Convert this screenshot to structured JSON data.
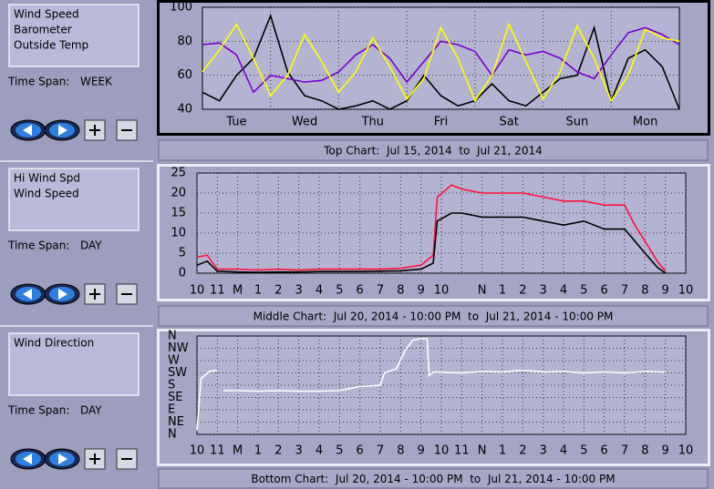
{
  "chart_data": [
    {
      "type": "line",
      "caption": "Top Chart:  Jul 15, 2014  to  Jul 21, 2014",
      "x": [
        0,
        6,
        12,
        18,
        24,
        30,
        36,
        42,
        48,
        54,
        60,
        66,
        72,
        78,
        84,
        90,
        96,
        102,
        108,
        114,
        120,
        126,
        132,
        138,
        144,
        150,
        156,
        162,
        168
      ],
      "xlim": [
        0,
        168
      ],
      "xticks": [
        {
          "value": 12,
          "label": "Tue"
        },
        {
          "value": 36,
          "label": "Wed"
        },
        {
          "value": 60,
          "label": "Thu"
        },
        {
          "value": 84,
          "label": "Fri"
        },
        {
          "value": 108,
          "label": "Sat"
        },
        {
          "value": 132,
          "label": "Sun"
        },
        {
          "value": 156,
          "label": "Mon"
        }
      ],
      "xgrid": [
        24,
        48,
        72,
        96,
        120,
        144
      ],
      "ylim": [
        40,
        100
      ],
      "yticks": [
        40,
        60,
        80,
        100
      ],
      "grid": true,
      "series": [
        {
          "name": "Wind Speed",
          "color": "#000000",
          "values": [
            50,
            45,
            60,
            70,
            95,
            62,
            48,
            45,
            40,
            42,
            45,
            40,
            45,
            60,
            48,
            42,
            45,
            55,
            45,
            42,
            50,
            58,
            60,
            88,
            45,
            70,
            75,
            65,
            40
          ]
        },
        {
          "name": "Barometer",
          "color": "#7a00cc",
          "values": [
            78,
            79,
            72,
            50,
            60,
            58,
            56,
            57,
            62,
            72,
            78,
            70,
            56,
            68,
            80,
            78,
            74,
            60,
            75,
            72,
            74,
            70,
            62,
            58,
            72,
            85,
            88,
            84,
            78
          ]
        },
        {
          "name": "Outside Temp",
          "color": "#ffff00",
          "values": [
            62,
            75,
            90,
            70,
            48,
            60,
            84,
            68,
            50,
            62,
            82,
            65,
            46,
            58,
            88,
            70,
            45,
            60,
            90,
            68,
            46,
            62,
            89,
            70,
            45,
            60,
            87,
            82,
            80
          ]
        }
      ]
    },
    {
      "type": "line",
      "caption": "Middle Chart:  Jul 20, 2014 - 10:00 PM  to  Jul 21, 2014 - 10:00 PM",
      "x": [
        0,
        0.5,
        1,
        2,
        3,
        4,
        5,
        6,
        7,
        8,
        9,
        10,
        11,
        11.6,
        11.8,
        12.5,
        13,
        14,
        15,
        16,
        17,
        18,
        19,
        20,
        21,
        21.5,
        22,
        22.6,
        23
      ],
      "xlim": [
        0,
        24
      ],
      "xticks": [
        {
          "value": 0,
          "label": "10"
        },
        {
          "value": 1,
          "label": "11"
        },
        {
          "value": 2,
          "label": "M"
        },
        {
          "value": 3,
          "label": "1"
        },
        {
          "value": 4,
          "label": "2"
        },
        {
          "value": 5,
          "label": "3"
        },
        {
          "value": 6,
          "label": "4"
        },
        {
          "value": 7,
          "label": "5"
        },
        {
          "value": 8,
          "label": "6"
        },
        {
          "value": 9,
          "label": "7"
        },
        {
          "value": 10,
          "label": "8"
        },
        {
          "value": 11,
          "label": "9"
        },
        {
          "value": 12,
          "label": "10"
        },
        {
          "value": 13,
          "label": null
        },
        {
          "value": 14,
          "label": "N"
        },
        {
          "value": 15,
          "label": "1"
        },
        {
          "value": 16,
          "label": "2"
        },
        {
          "value": 17,
          "label": "3"
        },
        {
          "value": 18,
          "label": "4"
        },
        {
          "value": 19,
          "label": "5"
        },
        {
          "value": 20,
          "label": "6"
        },
        {
          "value": 21,
          "label": "7"
        },
        {
          "value": 22,
          "label": "8"
        },
        {
          "value": 23,
          "label": "9"
        },
        {
          "value": 24,
          "label": "10"
        }
      ],
      "ylim": [
        0,
        25
      ],
      "yticks": [
        0,
        5,
        10,
        15,
        20,
        25
      ],
      "grid": true,
      "series": [
        {
          "name": "Hi Wind Spd",
          "color": "#ff1040",
          "values": [
            4,
            4.5,
            1,
            1,
            0.8,
            1,
            0.8,
            1,
            1,
            1,
            1,
            1.2,
            2,
            4.5,
            19,
            22,
            21,
            20,
            20,
            20,
            19,
            18,
            18,
            17,
            17,
            12,
            8,
            3,
            0.5
          ]
        },
        {
          "name": "Wind Speed",
          "color": "#000000",
          "values": [
            2,
            3,
            0.5,
            0.3,
            0.2,
            0.3,
            0.3,
            0.4,
            0.4,
            0.4,
            0.5,
            0.6,
            1,
            2.5,
            13,
            15,
            15,
            14,
            14,
            14,
            13,
            12,
            13,
            11,
            11,
            8,
            5,
            1.5,
            0
          ]
        }
      ]
    },
    {
      "type": "line",
      "caption": "Bottom Chart:  Jul 20, 2014 - 10:00 PM  to  Jul 21, 2014 - 10:00 PM",
      "x": [
        0,
        0.2,
        0.6,
        1,
        1.1,
        1.3,
        2,
        3,
        4,
        5,
        6,
        7,
        8,
        9,
        9.2,
        9.8,
        10.2,
        10.6,
        11,
        11.3,
        11.4,
        11.6,
        13,
        14,
        15,
        16,
        17,
        18,
        19,
        20,
        21,
        22,
        23
      ],
      "xlim": [
        0,
        24
      ],
      "xticks": [
        {
          "value": 0,
          "label": "10"
        },
        {
          "value": 1,
          "label": "11"
        },
        {
          "value": 2,
          "label": "M"
        },
        {
          "value": 3,
          "label": "1"
        },
        {
          "value": 4,
          "label": "2"
        },
        {
          "value": 5,
          "label": "3"
        },
        {
          "value": 6,
          "label": "4"
        },
        {
          "value": 7,
          "label": "5"
        },
        {
          "value": 8,
          "label": "6"
        },
        {
          "value": 9,
          "label": "7"
        },
        {
          "value": 10,
          "label": "8"
        },
        {
          "value": 11,
          "label": "9"
        },
        {
          "value": 12,
          "label": "10"
        },
        {
          "value": 13,
          "label": "11"
        },
        {
          "value": 14,
          "label": "N"
        },
        {
          "value": 15,
          "label": "1"
        },
        {
          "value": 16,
          "label": "2"
        },
        {
          "value": 17,
          "label": "3"
        },
        {
          "value": 18,
          "label": "4"
        },
        {
          "value": 19,
          "label": "5"
        },
        {
          "value": 20,
          "label": "6"
        },
        {
          "value": 21,
          "label": "7"
        },
        {
          "value": 22,
          "label": "8"
        },
        {
          "value": 23,
          "label": "9"
        },
        {
          "value": 24,
          "label": "10"
        }
      ],
      "ylim": [
        0,
        360
      ],
      "yticks": [
        {
          "value": 0,
          "label": "N"
        },
        {
          "value": 45,
          "label": "NE"
        },
        {
          "value": 90,
          "label": "E"
        },
        {
          "value": 135,
          "label": "SE"
        },
        {
          "value": 180,
          "label": "S"
        },
        {
          "value": 225,
          "label": "SW"
        },
        {
          "value": 270,
          "label": "W"
        },
        {
          "value": 315,
          "label": "NW"
        },
        {
          "value": 360,
          "label": "N"
        }
      ],
      "grid": true,
      "series": [
        {
          "name": "Wind Direction",
          "color": "#ffffff",
          "values": [
            15,
            205,
            230,
            235,
            null,
            160,
            160,
            158,
            160,
            158,
            158,
            160,
            175,
            180,
            225,
            240,
            305,
            345,
            350,
            350,
            215,
            228,
            225,
            230,
            228,
            235,
            228,
            230,
            225,
            228,
            225,
            230,
            228
          ]
        }
      ]
    }
  ],
  "controls": [
    {
      "time_span_label": "Time Span:",
      "time_span": "WEEK"
    },
    {
      "time_span_label": "Time Span:",
      "time_span": "DAY"
    },
    {
      "time_span_label": "Time Span:",
      "time_span": "DAY"
    }
  ]
}
